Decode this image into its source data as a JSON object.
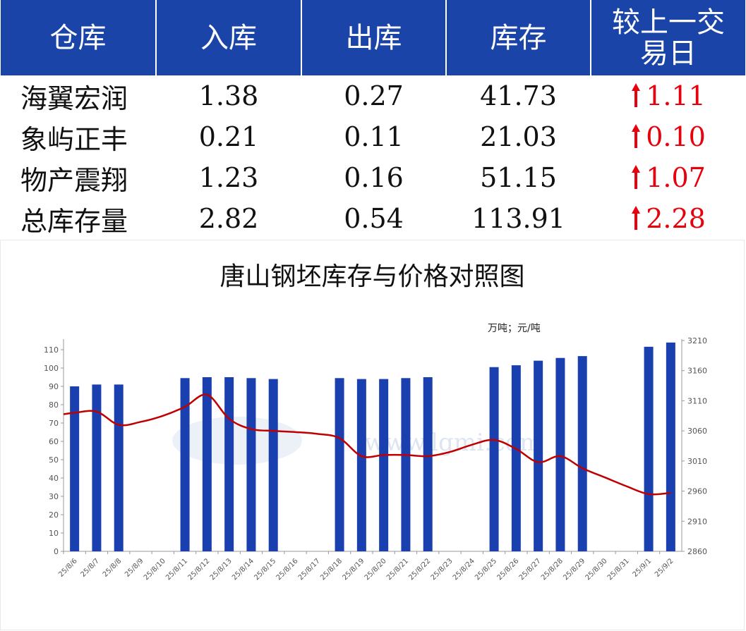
{
  "table": {
    "headers": [
      "仓库",
      "入库",
      "出库",
      "库存",
      "较上一交易日"
    ],
    "rows": [
      {
        "name": "海翼宏润",
        "in": "1.38",
        "out": "0.27",
        "stock": "41.73",
        "change": "1.11"
      },
      {
        "name": "象屿正丰",
        "in": "0.21",
        "out": "0.11",
        "stock": "21.03",
        "change": "0.10"
      },
      {
        "name": "物产震翔",
        "in": "1.23",
        "out": "0.16",
        "stock": "51.15",
        "change": "1.07"
      },
      {
        "name": "总库存量",
        "in": "2.82",
        "out": "0.54",
        "stock": "113.91",
        "change": "2.28"
      }
    ],
    "up_color": "#e8000c",
    "header_color": "#1a44a8"
  },
  "chart_title": "唐山钢坯库存与价格对照图",
  "watermark": "www.lgmi.com",
  "chart_data": {
    "type": "bar",
    "title": "唐山钢坯库存与价格对照图",
    "unit_label": "万吨；元/吨",
    "categories": [
      "25/8/6",
      "25/8/7",
      "25/8/8",
      "25/8/9",
      "25/8/10",
      "25/8/11",
      "25/8/12",
      "25/8/13",
      "25/8/14",
      "25/8/15",
      "25/8/16",
      "25/8/17",
      "25/8/18",
      "25/8/19",
      "25/8/20",
      "25/8/21",
      "25/8/22",
      "25/8/23",
      "25/8/24",
      "25/8/25",
      "25/8/26",
      "25/8/27",
      "25/8/28",
      "25/8/29",
      "25/8/30",
      "25/8/31",
      "25/9/1",
      "25/9/2"
    ],
    "series": [
      {
        "type": "bar",
        "axis": "left",
        "color": "#1a3fae",
        "values": [
          90,
          91,
          91,
          null,
          null,
          94.5,
          95,
          95,
          94.5,
          94,
          null,
          null,
          94.5,
          94,
          94,
          94.5,
          95,
          null,
          null,
          100.5,
          101.5,
          104,
          105.5,
          106.5,
          null,
          null,
          111.6,
          113.91
        ]
      },
      {
        "type": "line",
        "axis": "right",
        "color": "#c00000",
        "values": [
          3090,
          3092,
          3070,
          3075,
          3085,
          3100,
          3120,
          3080,
          3063,
          3060,
          3058,
          3055,
          3048,
          3018,
          3020,
          3020,
          3018,
          3025,
          3037,
          3045,
          3030,
          3008,
          3018,
          2998,
          2983,
          2968,
          2955,
          2957
        ]
      }
    ],
    "y_left": {
      "min": 0,
      "max": 115,
      "ticks": [
        0,
        10,
        20,
        30,
        40,
        50,
        60,
        70,
        80,
        90,
        100,
        110
      ]
    },
    "y_right": {
      "min": 2860,
      "max": 3210,
      "ticks": [
        2860,
        2910,
        2960,
        3010,
        3060,
        3110,
        3160,
        3210
      ]
    },
    "grid": false,
    "legend": "none"
  }
}
